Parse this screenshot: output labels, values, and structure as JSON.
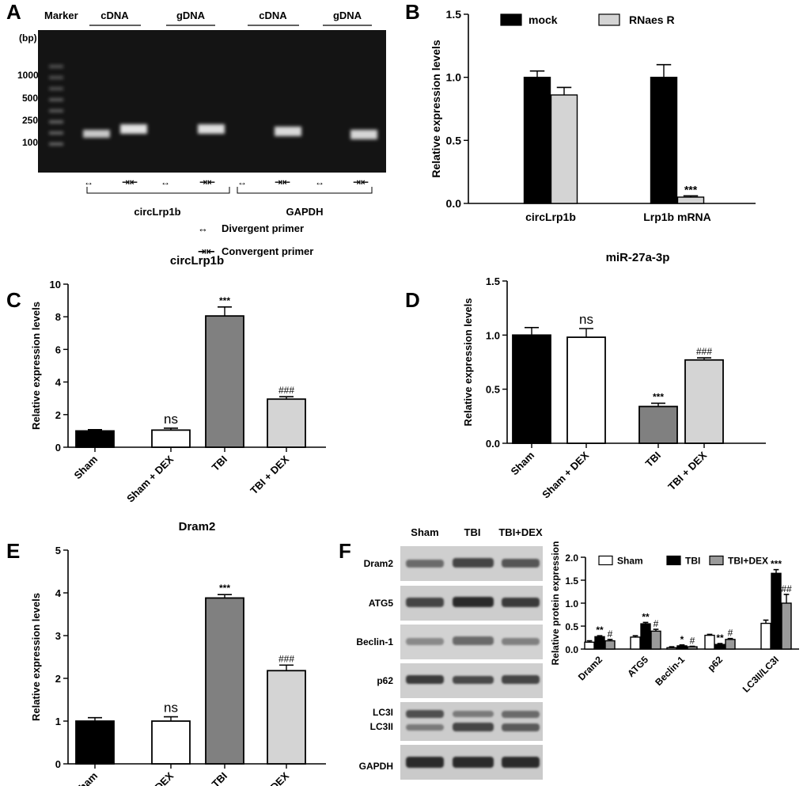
{
  "panels": {
    "A": {
      "letter": "A",
      "marker_label": "Marker",
      "bp_label": "(bp)",
      "lane_groups": [
        "cDNA",
        "gDNA",
        "cDNA",
        "gDNA"
      ],
      "ladder": [
        "1000",
        "500",
        "250",
        "100"
      ],
      "gene_labels": [
        "circLrp1b",
        "GAPDH"
      ],
      "primer_legend": [
        "Divergent primer",
        "Convergent primer"
      ]
    },
    "B": {
      "letter": "B"
    },
    "C": {
      "letter": "C"
    },
    "D": {
      "letter": "D"
    },
    "E": {
      "letter": "E"
    },
    "F": {
      "letter": "F",
      "blot_columns": [
        "Sham",
        "TBI",
        "TBI+DEX"
      ],
      "blot_rows": [
        "Dram2",
        "ATG5",
        "Beclin-1",
        "p62",
        "LC3I",
        "LC3II",
        "GAPDH"
      ]
    }
  },
  "chart_data": [
    {
      "id": "B",
      "type": "bar",
      "title": "",
      "ylabel": "Relative expression levels",
      "ylim": [
        0,
        1.5
      ],
      "yticks": [
        "0.0",
        "0.5",
        "1.0",
        "1.5"
      ],
      "categories": [
        "circLrp1b",
        "Lrp1b mRNA"
      ],
      "legend_position": "top",
      "series": [
        {
          "name": "mock",
          "values": [
            1.0,
            1.0
          ],
          "errors": [
            0.05,
            0.1
          ],
          "color": "#000000",
          "annotations": [
            "",
            ""
          ]
        },
        {
          "name": "RNaes R",
          "values": [
            0.86,
            0.05
          ],
          "errors": [
            0.06,
            0.01
          ],
          "color": "#d4d4d4",
          "annotations": [
            "",
            "***"
          ]
        }
      ]
    },
    {
      "id": "C",
      "type": "bar",
      "title": "circLrp1b",
      "ylabel": "Relative expression levels",
      "ylim": [
        0,
        10
      ],
      "yticks": [
        "0",
        "2",
        "4",
        "6",
        "8",
        "10"
      ],
      "categories": [
        "Sham",
        "Sham + DEX",
        "TBI",
        "TBI + DEX"
      ],
      "values": [
        1.0,
        1.05,
        8.05,
        2.95
      ],
      "errors": [
        0.08,
        0.12,
        0.55,
        0.15
      ],
      "colors": [
        "#000000",
        "#ffffff",
        "#808080",
        "#d4d4d4"
      ],
      "annotations": [
        "",
        "ns",
        "***",
        "###"
      ]
    },
    {
      "id": "D",
      "type": "bar",
      "title": "miR-27a-3p",
      "ylabel": "Relative expression levels",
      "ylim": [
        0,
        1.5
      ],
      "yticks": [
        "0.0",
        "0.5",
        "1.0",
        "1.5"
      ],
      "categories": [
        "Sham",
        "Sham + DEX",
        "TBI",
        "TBI + DEX"
      ],
      "values": [
        1.0,
        0.98,
        0.34,
        0.77
      ],
      "errors": [
        0.07,
        0.08,
        0.03,
        0.02
      ],
      "colors": [
        "#000000",
        "#ffffff",
        "#808080",
        "#d4d4d4"
      ],
      "annotations": [
        "",
        "ns",
        "***",
        "###"
      ]
    },
    {
      "id": "E",
      "type": "bar",
      "title": "Dram2",
      "ylabel": "Relative expression levels",
      "ylim": [
        0,
        5
      ],
      "yticks": [
        "0",
        "1",
        "2",
        "3",
        "4",
        "5"
      ],
      "categories": [
        "Sham",
        "Sham + DEX",
        "TBI",
        "TBI + DEX"
      ],
      "values": [
        1.0,
        1.0,
        3.88,
        2.18
      ],
      "errors": [
        0.08,
        0.1,
        0.08,
        0.13
      ],
      "colors": [
        "#000000",
        "#ffffff",
        "#808080",
        "#d4d4d4"
      ],
      "annotations": [
        "",
        "ns",
        "***",
        "###"
      ]
    },
    {
      "id": "F",
      "type": "bar",
      "title": "",
      "ylabel": "Relative protein expression",
      "ylim": [
        0,
        2.0
      ],
      "yticks": [
        "0.0",
        "0.5",
        "1.0",
        "1.5",
        "2.0"
      ],
      "categories": [
        "Dram2",
        "ATG5",
        "Beclin-1",
        "p62",
        "LC3II/LC3I"
      ],
      "legend_position": "top",
      "series": [
        {
          "name": "Sham",
          "values": [
            0.15,
            0.26,
            0.03,
            0.3,
            0.56
          ],
          "errors": [
            0.03,
            0.03,
            0.02,
            0.02,
            0.07
          ],
          "color": "#ffffff",
          "annotations": [
            "",
            "",
            "",
            "",
            ""
          ]
        },
        {
          "name": "TBI",
          "values": [
            0.27,
            0.55,
            0.07,
            0.1,
            1.65
          ],
          "errors": [
            0.02,
            0.03,
            0.02,
            0.02,
            0.08
          ],
          "color": "#000000",
          "annotations": [
            "**",
            "**",
            "*",
            "**",
            "***"
          ]
        },
        {
          "name": "TBI+DEX",
          "values": [
            0.18,
            0.39,
            0.05,
            0.21,
            1.0
          ],
          "errors": [
            0.03,
            0.04,
            0.01,
            0.02,
            0.19
          ],
          "color": "#9a9a9a",
          "annotations": [
            "#",
            "#",
            "#",
            "#",
            "##"
          ]
        }
      ]
    }
  ]
}
